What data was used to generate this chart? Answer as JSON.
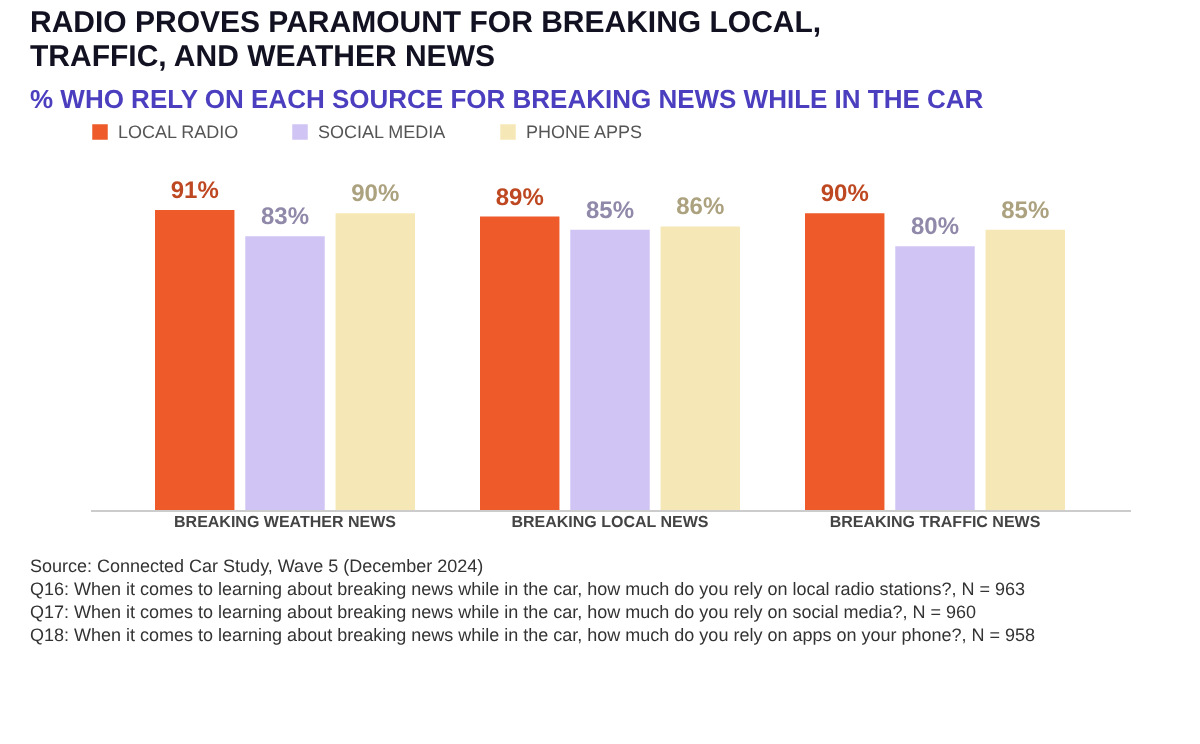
{
  "chart_data": {
    "type": "bar",
    "title": "RADIO PROVES PARAMOUNT FOR BREAKING LOCAL, TRAFFIC, AND WEATHER NEWS",
    "subtitle": "% WHO RELY ON EACH SOURCE FOR BREAKING NEWS WHILE IN THE CAR",
    "categories": [
      "BREAKING WEATHER NEWS",
      "BREAKING LOCAL NEWS",
      "BREAKING TRAFFIC NEWS"
    ],
    "series": [
      {
        "name": "LOCAL RADIO",
        "color": "#ee5a2a",
        "values": [
          91,
          89,
          90
        ],
        "value_labels": [
          "91%",
          "89%",
          "90%"
        ]
      },
      {
        "name": "SOCIAL MEDIA",
        "color": "#d0c4f4",
        "values": [
          83,
          85,
          80
        ],
        "value_labels": [
          "83%",
          "85%",
          "80%"
        ]
      },
      {
        "name": "PHONE APPS",
        "color": "#f6e8b6",
        "values": [
          90,
          86,
          85
        ],
        "value_labels": [
          "90%",
          "86%",
          "85%"
        ]
      }
    ],
    "legend": "top left",
    "grid": false,
    "annotations": [
      "Source: Connected Car Study, Wave 5 (December 2024)",
      "Q16: When it comes to learning about breaking news while in the car, how much do you rely on local radio stations?, N = 963",
      "Q17: When it comes to learning about breaking news while in the car, how much do you rely on social media?, N = 960",
      "Q18: When it comes to learning about breaking news while in the car, how much do you rely on apps on your phone?, N = 958"
    ]
  }
}
